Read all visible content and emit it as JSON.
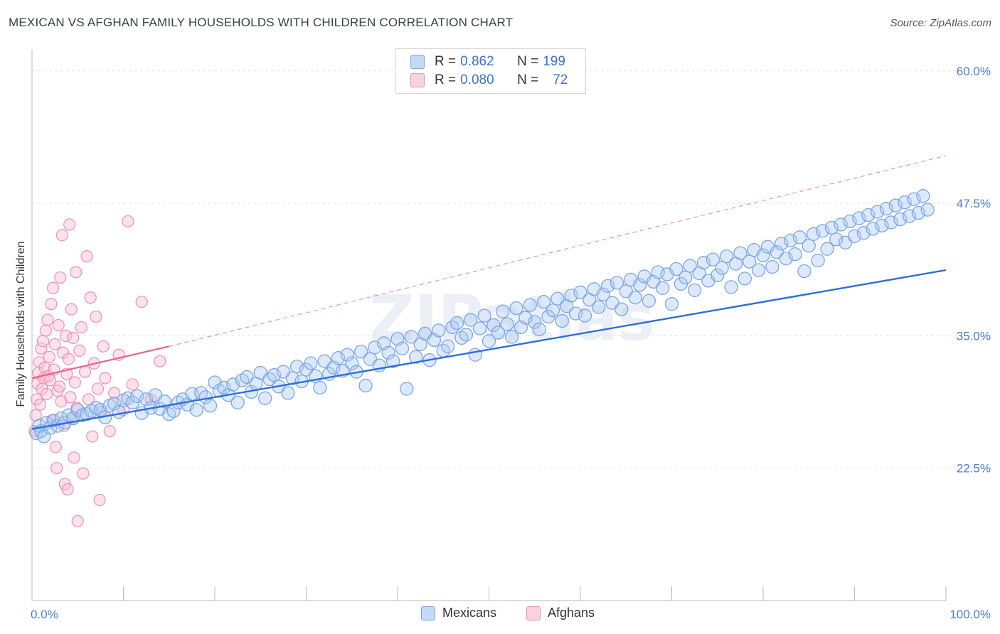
{
  "title": "MEXICAN VS AFGHAN FAMILY HOUSEHOLDS WITH CHILDREN CORRELATION CHART",
  "source": "Source: ZipAtlas.com",
  "legend": {
    "rows": [
      {
        "r_label": "R =",
        "r_value": "0.862",
        "n_label": "N =",
        "n_value": "199"
      },
      {
        "r_label": "R =",
        "r_value": "0.080",
        "n_label": "N =",
        "n_value": "72"
      }
    ]
  },
  "colors": {
    "blue": "#7aa6e8",
    "blue_fill": "#aac8f2",
    "blue_line": "#2d6fd6",
    "pink": "#f08fb0",
    "pink_fill": "#f7bfd2",
    "pink_line": "#e8628e",
    "grid": "#e3e3e3",
    "axis_text": "#4a7fd0"
  },
  "chart_data": {
    "type": "scatter",
    "title": "MEXICAN VS AFGHAN FAMILY HOUSEHOLDS WITH CHILDREN CORRELATION CHART",
    "ylabel": "Family Households with Children",
    "xlabel": "",
    "xlim": [
      0,
      100
    ],
    "ylim": [
      10,
      62
    ],
    "x_tick_labels": [
      "0.0%",
      "100.0%"
    ],
    "y_ticks": [
      22.5,
      35.0,
      47.5,
      60.0
    ],
    "y_tick_labels": [
      "22.5%",
      "35.0%",
      "47.5%",
      "60.0%"
    ],
    "grid": true,
    "legend_position": "top-center",
    "series": [
      {
        "name": "Mexicans",
        "color": "#7aa6e8",
        "r": 0.862,
        "n": 199,
        "trend": {
          "x": [
            0,
            100
          ],
          "y": [
            26.2,
            41.2
          ],
          "style": "solid"
        },
        "points": [
          [
            0.5,
            25.8
          ],
          [
            0.8,
            26.5
          ],
          [
            1.0,
            26.0
          ],
          [
            1.3,
            25.5
          ],
          [
            1.6,
            26.8
          ],
          [
            2.0,
            26.3
          ],
          [
            2.4,
            27.0
          ],
          [
            2.8,
            26.5
          ],
          [
            3.2,
            27.2
          ],
          [
            3.6,
            26.8
          ],
          [
            4.0,
            27.5
          ],
          [
            4.5,
            27.2
          ],
          [
            5.0,
            28.0
          ],
          [
            5.5,
            27.5
          ],
          [
            6.0,
            27.6
          ],
          [
            6.5,
            27.9
          ],
          [
            7.0,
            28.2
          ],
          [
            7.5,
            28.0
          ],
          [
            8.0,
            27.3
          ],
          [
            8.5,
            28.4
          ],
          [
            9.0,
            28.6
          ],
          [
            9.5,
            27.8
          ],
          [
            10.0,
            28.9
          ],
          [
            10.5,
            29.1
          ],
          [
            11.0,
            28.7
          ],
          [
            11.5,
            29.3
          ],
          [
            12.0,
            27.7
          ],
          [
            12.5,
            29.0
          ],
          [
            13.0,
            28.2
          ],
          [
            13.5,
            29.4
          ],
          [
            14.0,
            28.1
          ],
          [
            14.5,
            28.8
          ],
          [
            15.0,
            27.6
          ],
          [
            15.5,
            27.9
          ],
          [
            16.0,
            28.7
          ],
          [
            16.5,
            29.0
          ],
          [
            17.0,
            28.5
          ],
          [
            17.5,
            29.5
          ],
          [
            18.0,
            28.0
          ],
          [
            18.5,
            29.6
          ],
          [
            19.0,
            29.2
          ],
          [
            19.5,
            28.4
          ],
          [
            20.0,
            30.6
          ],
          [
            20.5,
            29.8
          ],
          [
            21.0,
            30.1
          ],
          [
            21.5,
            29.4
          ],
          [
            22.0,
            30.4
          ],
          [
            22.5,
            28.7
          ],
          [
            23.0,
            30.8
          ],
          [
            23.5,
            31.1
          ],
          [
            24.0,
            29.7
          ],
          [
            24.5,
            30.5
          ],
          [
            25.0,
            31.5
          ],
          [
            25.5,
            29.1
          ],
          [
            26.0,
            30.9
          ],
          [
            26.5,
            31.3
          ],
          [
            27.0,
            30.2
          ],
          [
            27.5,
            31.6
          ],
          [
            28.0,
            29.6
          ],
          [
            28.5,
            31.0
          ],
          [
            29.0,
            32.1
          ],
          [
            29.5,
            30.7
          ],
          [
            30.0,
            31.8
          ],
          [
            30.5,
            32.4
          ],
          [
            31.0,
            31.2
          ],
          [
            31.5,
            30.1
          ],
          [
            32.0,
            32.6
          ],
          [
            32.5,
            31.4
          ],
          [
            33.0,
            32.0
          ],
          [
            33.5,
            32.9
          ],
          [
            34.0,
            31.7
          ],
          [
            34.5,
            33.2
          ],
          [
            35.0,
            32.4
          ],
          [
            35.5,
            31.6
          ],
          [
            36.0,
            33.5
          ],
          [
            36.5,
            30.3
          ],
          [
            37.0,
            32.8
          ],
          [
            37.5,
            33.9
          ],
          [
            38.0,
            32.2
          ],
          [
            38.5,
            34.3
          ],
          [
            39.0,
            33.4
          ],
          [
            39.5,
            32.6
          ],
          [
            40.0,
            34.7
          ],
          [
            40.5,
            33.8
          ],
          [
            41.0,
            30.0
          ],
          [
            41.5,
            34.9
          ],
          [
            42.0,
            33.0
          ],
          [
            42.5,
            34.2
          ],
          [
            43.0,
            35.2
          ],
          [
            43.5,
            32.7
          ],
          [
            44.0,
            34.6
          ],
          [
            44.5,
            35.5
          ],
          [
            45.0,
            33.6
          ],
          [
            45.5,
            34.0
          ],
          [
            46.0,
            35.8
          ],
          [
            46.5,
            36.2
          ],
          [
            47.0,
            34.8
          ],
          [
            47.5,
            35.1
          ],
          [
            48.0,
            36.5
          ],
          [
            48.5,
            33.2
          ],
          [
            49.0,
            35.7
          ],
          [
            49.5,
            36.9
          ],
          [
            50.0,
            34.5
          ],
          [
            50.5,
            36.0
          ],
          [
            51.0,
            35.3
          ],
          [
            51.5,
            37.3
          ],
          [
            52.0,
            36.1
          ],
          [
            52.5,
            34.9
          ],
          [
            53.0,
            37.6
          ],
          [
            53.5,
            35.8
          ],
          [
            54.0,
            36.7
          ],
          [
            54.5,
            37.9
          ],
          [
            55.0,
            36.3
          ],
          [
            55.5,
            35.6
          ],
          [
            56.0,
            38.2
          ],
          [
            56.5,
            36.8
          ],
          [
            57.0,
            37.4
          ],
          [
            57.5,
            38.5
          ],
          [
            58.0,
            36.4
          ],
          [
            58.5,
            37.8
          ],
          [
            59.0,
            38.8
          ],
          [
            59.5,
            37.1
          ],
          [
            60.0,
            39.1
          ],
          [
            60.5,
            36.9
          ],
          [
            61.0,
            38.4
          ],
          [
            61.5,
            39.4
          ],
          [
            62.0,
            37.7
          ],
          [
            62.5,
            38.9
          ],
          [
            63.0,
            39.7
          ],
          [
            63.5,
            38.1
          ],
          [
            64.0,
            40.0
          ],
          [
            64.5,
            37.5
          ],
          [
            65.0,
            39.2
          ],
          [
            65.5,
            40.3
          ],
          [
            66.0,
            38.6
          ],
          [
            66.5,
            39.8
          ],
          [
            67.0,
            40.6
          ],
          [
            67.5,
            38.3
          ],
          [
            68.0,
            40.1
          ],
          [
            68.5,
            41.0
          ],
          [
            69.0,
            39.5
          ],
          [
            69.5,
            40.8
          ],
          [
            70.0,
            38.0
          ],
          [
            70.5,
            41.3
          ],
          [
            71.0,
            39.9
          ],
          [
            71.5,
            40.5
          ],
          [
            72.0,
            41.6
          ],
          [
            72.5,
            39.3
          ],
          [
            73.0,
            40.9
          ],
          [
            73.5,
            41.9
          ],
          [
            74.0,
            40.2
          ],
          [
            74.5,
            42.2
          ],
          [
            75.0,
            40.7
          ],
          [
            75.5,
            41.4
          ],
          [
            76.0,
            42.5
          ],
          [
            76.5,
            39.6
          ],
          [
            77.0,
            41.8
          ],
          [
            77.5,
            42.8
          ],
          [
            78.0,
            40.4
          ],
          [
            78.5,
            42.0
          ],
          [
            79.0,
            43.1
          ],
          [
            79.5,
            41.2
          ],
          [
            80.0,
            42.6
          ],
          [
            80.5,
            43.4
          ],
          [
            81.0,
            41.5
          ],
          [
            81.5,
            42.9
          ],
          [
            82.0,
            43.7
          ],
          [
            82.5,
            42.3
          ],
          [
            83.0,
            44.0
          ],
          [
            83.5,
            42.7
          ],
          [
            84.0,
            44.3
          ],
          [
            84.5,
            41.1
          ],
          [
            85.0,
            43.5
          ],
          [
            85.5,
            44.6
          ],
          [
            86.0,
            42.1
          ],
          [
            86.5,
            44.9
          ],
          [
            87.0,
            43.2
          ],
          [
            87.5,
            45.2
          ],
          [
            88.0,
            44.1
          ],
          [
            88.5,
            45.5
          ],
          [
            89.0,
            43.8
          ],
          [
            89.5,
            45.8
          ],
          [
            90.0,
            44.4
          ],
          [
            90.5,
            46.1
          ],
          [
            91.0,
            44.7
          ],
          [
            91.5,
            46.4
          ],
          [
            92.0,
            45.1
          ],
          [
            92.5,
            46.7
          ],
          [
            93.0,
            45.4
          ],
          [
            93.5,
            47.0
          ],
          [
            94.0,
            45.7
          ],
          [
            94.5,
            47.3
          ],
          [
            95.0,
            46.0
          ],
          [
            95.5,
            47.6
          ],
          [
            96.0,
            46.3
          ],
          [
            96.5,
            47.9
          ],
          [
            97.0,
            46.6
          ],
          [
            97.5,
            48.2
          ],
          [
            98.0,
            46.9
          ]
        ]
      },
      {
        "name": "Afghans",
        "color": "#f08fb0",
        "r": 0.08,
        "n": 72,
        "trend": {
          "x": [
            0,
            15
          ],
          "y": [
            31.0,
            34.0
          ],
          "style": "solid",
          "dashed_extension": {
            "x": [
              15,
              100
            ],
            "y": [
              34.0,
              52.0
            ]
          }
        },
        "points": [
          [
            0.3,
            26.0
          ],
          [
            0.4,
            27.5
          ],
          [
            0.5,
            29.0
          ],
          [
            0.6,
            30.5
          ],
          [
            0.7,
            31.5
          ],
          [
            0.8,
            32.5
          ],
          [
            0.9,
            28.5
          ],
          [
            1.0,
            33.8
          ],
          [
            1.1,
            30.0
          ],
          [
            1.2,
            34.5
          ],
          [
            1.3,
            31.0
          ],
          [
            1.4,
            32.0
          ],
          [
            1.5,
            35.5
          ],
          [
            1.6,
            29.5
          ],
          [
            1.7,
            36.5
          ],
          [
            1.8,
            31.2
          ],
          [
            1.9,
            33.0
          ],
          [
            2.0,
            30.8
          ],
          [
            2.1,
            38.0
          ],
          [
            2.2,
            27.0
          ],
          [
            2.3,
            39.5
          ],
          [
            2.4,
            31.8
          ],
          [
            2.5,
            34.2
          ],
          [
            2.6,
            24.5
          ],
          [
            2.7,
            22.5
          ],
          [
            2.8,
            29.8
          ],
          [
            2.9,
            36.0
          ],
          [
            3.0,
            30.2
          ],
          [
            3.1,
            40.5
          ],
          [
            3.2,
            28.8
          ],
          [
            3.3,
            44.5
          ],
          [
            3.4,
            33.4
          ],
          [
            3.5,
            26.5
          ],
          [
            3.6,
            21.0
          ],
          [
            3.7,
            35.0
          ],
          [
            3.8,
            31.4
          ],
          [
            3.9,
            20.5
          ],
          [
            4.0,
            32.8
          ],
          [
            4.1,
            45.5
          ],
          [
            4.2,
            29.2
          ],
          [
            4.3,
            37.5
          ],
          [
            4.4,
            27.2
          ],
          [
            4.5,
            34.8
          ],
          [
            4.6,
            23.5
          ],
          [
            4.7,
            30.6
          ],
          [
            4.8,
            41.0
          ],
          [
            4.9,
            28.2
          ],
          [
            5.0,
            17.5
          ],
          [
            5.2,
            33.6
          ],
          [
            5.4,
            35.8
          ],
          [
            5.6,
            22.0
          ],
          [
            5.8,
            31.6
          ],
          [
            6.0,
            42.5
          ],
          [
            6.2,
            29.0
          ],
          [
            6.4,
            38.6
          ],
          [
            6.6,
            25.5
          ],
          [
            6.8,
            32.4
          ],
          [
            7.0,
            36.8
          ],
          [
            7.2,
            30.0
          ],
          [
            7.4,
            19.5
          ],
          [
            7.6,
            27.8
          ],
          [
            7.8,
            34.0
          ],
          [
            8.0,
            31.0
          ],
          [
            8.5,
            26.0
          ],
          [
            9.0,
            29.6
          ],
          [
            9.5,
            33.2
          ],
          [
            10.0,
            28.0
          ],
          [
            10.5,
            45.8
          ],
          [
            11.0,
            30.4
          ],
          [
            12.0,
            38.2
          ],
          [
            13.0,
            29.0
          ],
          [
            14.0,
            32.6
          ]
        ]
      }
    ]
  },
  "bottom_legend": [
    "Mexicans",
    "Afghans"
  ],
  "watermark": "ZIPatlas"
}
